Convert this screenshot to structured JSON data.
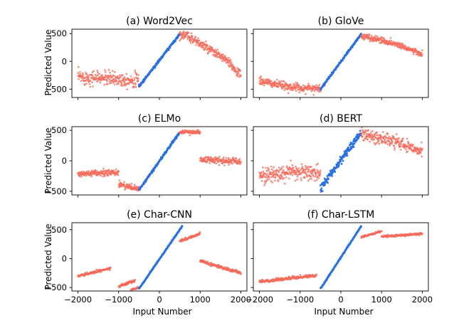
{
  "figure": {
    "ylabel": "Predicted Value",
    "xlabel": "Input Number"
  },
  "colors": {
    "model_points": "#f4695a",
    "training_points": "#2a6fe0"
  },
  "chart_data": [
    {
      "type": "scatter",
      "title": "(a) Word2Vec",
      "xlim": [
        -2150,
        2150
      ],
      "ylim": [
        -650,
        580
      ],
      "xticks": [
        -2000,
        -1000,
        0,
        1000,
        2000
      ],
      "yticks": [
        -500,
        0,
        500
      ],
      "training_range": [
        -500,
        500
      ],
      "series": [
        {
          "color": "#f4695a",
          "x": [
            -2000,
            -1500,
            -1000,
            -500
          ],
          "y": [
            -280,
            -300,
            -320,
            -340
          ],
          "spread": 140
        },
        {
          "color": "#2a6fe0",
          "x": [
            -500,
            500
          ],
          "y": [
            -450,
            490
          ],
          "spread": 25
        },
        {
          "color": "#f4695a",
          "x": [
            500,
            800,
            1200,
            1600,
            2000
          ],
          "y": [
            500,
            420,
            220,
            50,
            -250
          ],
          "spread": 90
        }
      ]
    },
    {
      "type": "scatter",
      "title": "(b) GloVe",
      "xlim": [
        -2150,
        2150
      ],
      "ylim": [
        -650,
        580
      ],
      "xticks": [
        -2000,
        -1000,
        0,
        1000,
        2000
      ],
      "yticks": [
        -500,
        0,
        500
      ],
      "training_range": [
        -500,
        500
      ],
      "series": [
        {
          "color": "#f4695a",
          "x": [
            -2000,
            -1500,
            -1000,
            -500
          ],
          "y": [
            -350,
            -430,
            -480,
            -480
          ],
          "spread": 80
        },
        {
          "color": "#2a6fe0",
          "x": [
            -500,
            500
          ],
          "y": [
            -500,
            490
          ],
          "spread": 20
        },
        {
          "color": "#f4695a",
          "x": [
            500,
            1000,
            1500,
            2000
          ],
          "y": [
            460,
            380,
            280,
            120
          ],
          "spread": 60
        }
      ]
    },
    {
      "type": "scatter",
      "title": "(c) ELMo",
      "xlim": [
        -2150,
        2150
      ],
      "ylim": [
        -560,
        560
      ],
      "xticks": [
        -2000,
        -1000,
        0,
        1000,
        2000
      ],
      "yticks": [
        -500,
        0,
        500
      ],
      "training_range": [
        -500,
        500
      ],
      "series": [
        {
          "color": "#f4695a",
          "x": [
            -2000,
            -1000
          ],
          "y": [
            -220,
            -190
          ],
          "spread": 55
        },
        {
          "color": "#f4695a",
          "x": [
            -1000,
            -500
          ],
          "y": [
            -380,
            -470
          ],
          "spread": 55
        },
        {
          "color": "#2a6fe0",
          "x": [
            -500,
            500
          ],
          "y": [
            -480,
            470
          ],
          "spread": 22
        },
        {
          "color": "#f4695a",
          "x": [
            500,
            1000
          ],
          "y": [
            470,
            470
          ],
          "spread": 40
        },
        {
          "color": "#f4695a",
          "x": [
            1000,
            2000
          ],
          "y": [
            20,
            -10
          ],
          "spread": 60
        }
      ]
    },
    {
      "type": "scatter",
      "title": "(d) BERT",
      "xlim": [
        -2150,
        2150
      ],
      "ylim": [
        -560,
        560
      ],
      "xticks": [
        -2000,
        -1000,
        0,
        1000,
        2000
      ],
      "yticks": [
        -500,
        0,
        500
      ],
      "training_range": [
        -500,
        500
      ],
      "series": [
        {
          "color": "#f4695a",
          "x": [
            -2000,
            -1000,
            -500
          ],
          "y": [
            -240,
            -180,
            -200
          ],
          "spread": 140
        },
        {
          "color": "#2a6fe0",
          "x": [
            -500,
            500
          ],
          "y": [
            -450,
            470
          ],
          "spread": 70
        },
        {
          "color": "#f4695a",
          "x": [
            500,
            1000,
            1500,
            2000
          ],
          "y": [
            430,
            370,
            280,
            170
          ],
          "spread": 110
        }
      ]
    },
    {
      "type": "scatter",
      "title": "(e) Char-CNN",
      "xlim": [
        -2150,
        2150
      ],
      "ylim": [
        -560,
        620
      ],
      "xticks": [
        -2000,
        -1000,
        0,
        1000,
        2000
      ],
      "yticks": [
        -500,
        0,
        500
      ],
      "training_range": [
        -500,
        500
      ],
      "series": [
        {
          "color": "#f4695a",
          "x": [
            -2000,
            -1200
          ],
          "y": [
            -300,
            -170
          ],
          "spread": 25
        },
        {
          "color": "#f4695a",
          "x": [
            -1000,
            -600
          ],
          "y": [
            -480,
            -380
          ],
          "spread": 25
        },
        {
          "color": "#f4695a",
          "x": [
            -700,
            -500
          ],
          "y": [
            -540,
            -500
          ],
          "spread": 15
        },
        {
          "color": "#2a6fe0",
          "x": [
            -500,
            560
          ],
          "y": [
            -520,
            560
          ],
          "spread": 10
        },
        {
          "color": "#f4695a",
          "x": [
            500,
            1000
          ],
          "y": [
            300,
            430
          ],
          "spread": 25
        },
        {
          "color": "#f4695a",
          "x": [
            1000,
            2000
          ],
          "y": [
            -40,
            -250
          ],
          "spread": 30
        }
      ]
    },
    {
      "type": "scatter",
      "title": "(f) Char-LSTM",
      "xlim": [
        -2150,
        2150
      ],
      "ylim": [
        -560,
        620
      ],
      "xticks": [
        -2000,
        -1000,
        0,
        1000,
        2000
      ],
      "yticks": [
        -500,
        0,
        500
      ],
      "training_range": [
        -500,
        500
      ],
      "series": [
        {
          "color": "#f4695a",
          "x": [
            -2000,
            -600
          ],
          "y": [
            -400,
            -290
          ],
          "spread": 25
        },
        {
          "color": "#2a6fe0",
          "x": [
            -500,
            500
          ],
          "y": [
            -520,
            560
          ],
          "spread": 10
        },
        {
          "color": "#f4695a",
          "x": [
            500,
            1000
          ],
          "y": [
            370,
            470
          ],
          "spread": 20
        },
        {
          "color": "#f4695a",
          "x": [
            1000,
            2000
          ],
          "y": [
            380,
            430
          ],
          "spread": 20
        }
      ]
    }
  ]
}
